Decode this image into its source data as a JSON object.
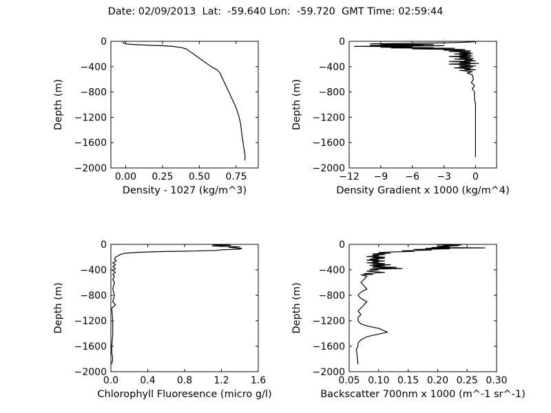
{
  "figure": {
    "title": "Date: 02/09/2013  Lat:  -59.640 Lon:  -59.720  GMT Time: 02:59:44"
  },
  "chart_data": [
    {
      "type": "line",
      "xlabel": "Density - 1027 (kg/m^3)",
      "ylabel": "Depth (m)",
      "xlim": [
        -0.1,
        0.9
      ],
      "ylim": [
        -2000,
        0
      ],
      "xticks": [
        0.0,
        0.25,
        0.5,
        0.75
      ],
      "xtick_labels": [
        "0.00",
        "0.25",
        "0.50",
        "0.75"
      ],
      "yticks": [
        0,
        -400,
        -800,
        -1200,
        -1600,
        -2000
      ],
      "ytick_labels": [
        "0",
        "−400",
        "−800",
        "−1200",
        "−1600",
        "−2000"
      ],
      "points": [
        [
          -0.02,
          -10
        ],
        [
          -0.01,
          -30
        ],
        [
          0.0,
          -40
        ],
        [
          0.02,
          -45
        ],
        [
          0.05,
          -50
        ],
        [
          0.1,
          -55
        ],
        [
          0.2,
          -65
        ],
        [
          0.25,
          -70
        ],
        [
          0.32,
          -80
        ],
        [
          0.35,
          -90
        ],
        [
          0.38,
          -100
        ],
        [
          0.41,
          -120
        ],
        [
          0.43,
          -150
        ],
        [
          0.46,
          -200
        ],
        [
          0.49,
          -250
        ],
        [
          0.52,
          -300
        ],
        [
          0.55,
          -350
        ],
        [
          0.58,
          -400
        ],
        [
          0.62,
          -450
        ],
        [
          0.64,
          -500
        ],
        [
          0.65,
          -550
        ],
        [
          0.67,
          -650
        ],
        [
          0.69,
          -750
        ],
        [
          0.72,
          -900
        ],
        [
          0.75,
          -1050
        ],
        [
          0.77,
          -1200
        ],
        [
          0.78,
          -1300
        ],
        [
          0.79,
          -1500
        ],
        [
          0.8,
          -1650
        ],
        [
          0.81,
          -1800
        ],
        [
          0.81,
          -1880
        ]
      ]
    },
    {
      "type": "line",
      "xlabel": "Density Gradient x 1000 (kg/m^4)",
      "ylabel": "Depth (m)",
      "xlim": [
        -12,
        2
      ],
      "ylim": [
        -2000,
        0
      ],
      "xticks": [
        -12,
        -9,
        -6,
        -3,
        0
      ],
      "xtick_labels": [
        "−12",
        "−9",
        "−6",
        "−3",
        "0"
      ],
      "yticks": [
        0,
        -400,
        -800,
        -1200,
        -1600,
        -2000
      ],
      "ytick_labels": [
        "0",
        "−400",
        "−800",
        "−1200",
        "−1600",
        "−2000"
      ],
      "points": [
        [
          0,
          -5
        ],
        [
          -1,
          -15
        ],
        [
          -3,
          -25
        ],
        [
          -6,
          -30
        ],
        [
          -10,
          -40
        ],
        [
          -4,
          -50
        ],
        [
          -9,
          -55
        ],
        [
          -5,
          -60
        ],
        [
          -10,
          -65
        ],
        [
          -3,
          -70
        ],
        [
          -11.5,
          -80
        ],
        [
          -6,
          -85
        ],
        [
          -9,
          -95
        ],
        [
          -4,
          -100
        ],
        [
          -8,
          -105
        ],
        [
          -2,
          -110
        ],
        [
          -6,
          -120
        ],
        [
          -1,
          -130
        ],
        [
          -3,
          -140
        ],
        [
          -0.5,
          -150
        ],
        [
          -2.5,
          -160
        ],
        [
          -0.5,
          -170
        ],
        [
          -1.5,
          -180
        ],
        [
          -0.3,
          -190
        ],
        [
          -2,
          -200
        ],
        [
          -0.5,
          -210
        ],
        [
          -1.5,
          -220
        ],
        [
          -0.3,
          -230
        ],
        [
          -2.5,
          -240
        ],
        [
          -0.5,
          -250
        ],
        [
          -1.5,
          -260
        ],
        [
          -0.2,
          -270
        ],
        [
          -2,
          -280
        ],
        [
          -0.3,
          -290
        ],
        [
          -1,
          -300
        ],
        [
          0,
          -310
        ],
        [
          -2.5,
          -320
        ],
        [
          -0.5,
          -330
        ],
        [
          -1.5,
          -340
        ],
        [
          0.3,
          -350
        ],
        [
          -2.5,
          -360
        ],
        [
          -0.5,
          -370
        ],
        [
          -1.5,
          -380
        ],
        [
          0,
          -390
        ],
        [
          -1.5,
          -400
        ],
        [
          -0.3,
          -410
        ],
        [
          -2,
          -420
        ],
        [
          -0.5,
          -430
        ],
        [
          -1,
          -440
        ],
        [
          0,
          -450
        ],
        [
          -1.5,
          -460
        ],
        [
          -0.3,
          -480
        ],
        [
          -0.8,
          -500
        ],
        [
          -0.3,
          -530
        ],
        [
          -0.2,
          -600
        ],
        [
          -0.4,
          -650
        ],
        [
          -0.1,
          -700
        ],
        [
          -0.3,
          -750
        ],
        [
          -0.1,
          -800
        ],
        [
          -0.1,
          -900
        ],
        [
          0,
          -1000
        ],
        [
          0,
          -1200
        ],
        [
          0,
          -1400
        ],
        [
          0,
          -1600
        ],
        [
          0,
          -1830
        ]
      ]
    },
    {
      "type": "line",
      "xlabel": "Chlorophyll Fluoresence (micro g/l)",
      "ylabel": "Depth (m)",
      "xlim": [
        0,
        1.6
      ],
      "ylim": [
        -2000,
        0
      ],
      "xticks": [
        0.0,
        0.4,
        0.8,
        1.2,
        1.6
      ],
      "xtick_labels": [
        "0.0",
        "0.4",
        "0.8",
        "1.2",
        "1.6"
      ],
      "yticks": [
        0,
        -400,
        -800,
        -1200,
        -1600,
        -2000
      ],
      "ytick_labels": [
        "0",
        "−400",
        "−800",
        "−1200",
        "−1600",
        "−2000"
      ],
      "points": [
        [
          1.1,
          -5
        ],
        [
          1.2,
          -10
        ],
        [
          1.3,
          -15
        ],
        [
          1.15,
          -20
        ],
        [
          1.1,
          -25
        ],
        [
          1.2,
          -30
        ],
        [
          1.4,
          -40
        ],
        [
          1.28,
          -45
        ],
        [
          1.35,
          -55
        ],
        [
          1.42,
          -65
        ],
        [
          1.4,
          -75
        ],
        [
          1.2,
          -85
        ],
        [
          1.15,
          -95
        ],
        [
          0.9,
          -105
        ],
        [
          0.5,
          -115
        ],
        [
          0.3,
          -125
        ],
        [
          0.15,
          -140
        ],
        [
          0.1,
          -160
        ],
        [
          0.08,
          -180
        ],
        [
          0.05,
          -200
        ],
        [
          0.04,
          -230
        ],
        [
          0.06,
          -260
        ],
        [
          0.02,
          -290
        ],
        [
          0.05,
          -320
        ],
        [
          0.02,
          -350
        ],
        [
          0.05,
          -380
        ],
        [
          0.02,
          -410
        ],
        [
          0.05,
          -440
        ],
        [
          0.02,
          -470
        ],
        [
          0.04,
          -500
        ],
        [
          0.02,
          -550
        ],
        [
          0.04,
          -600
        ],
        [
          0.02,
          -700
        ],
        [
          0.04,
          -800
        ],
        [
          0.02,
          -900
        ],
        [
          0.05,
          -950
        ],
        [
          0.01,
          -1000
        ],
        [
          0.02,
          -1200
        ],
        [
          0.02,
          -1400
        ],
        [
          0.01,
          -1600
        ],
        [
          0.01,
          -1700
        ],
        [
          0.02,
          -1800
        ],
        [
          0.01,
          -1880
        ]
      ]
    },
    {
      "type": "line",
      "xlabel": "Backscatter 700nm x 1000 (m^-1 sr^-1)",
      "ylabel": "Depth (m)",
      "xlim": [
        0.05,
        0.3
      ],
      "ylim": [
        -2000,
        0
      ],
      "xticks": [
        0.05,
        0.1,
        0.15,
        0.2,
        0.25,
        0.3
      ],
      "xtick_labels": [
        "0.05",
        "0.10",
        "0.15",
        "0.20",
        "0.25",
        "0.30"
      ],
      "yticks": [
        0,
        -400,
        -800,
        -1200,
        -1600,
        -2000
      ],
      "ytick_labels": [
        "0",
        "−400",
        "−800",
        "−1200",
        "−1600",
        "−2000"
      ],
      "points": [
        [
          0.2,
          -5
        ],
        [
          0.24,
          -10
        ],
        [
          0.21,
          -15
        ],
        [
          0.235,
          -20
        ],
        [
          0.2,
          -30
        ],
        [
          0.22,
          -40
        ],
        [
          0.19,
          -50
        ],
        [
          0.28,
          -55
        ],
        [
          0.18,
          -60
        ],
        [
          0.22,
          -70
        ],
        [
          0.16,
          -80
        ],
        [
          0.19,
          -90
        ],
        [
          0.14,
          -100
        ],
        [
          0.16,
          -110
        ],
        [
          0.12,
          -120
        ],
        [
          0.1,
          -130
        ],
        [
          0.12,
          -140
        ],
        [
          0.09,
          -150
        ],
        [
          0.11,
          -160
        ],
        [
          0.09,
          -170
        ],
        [
          0.1,
          -180
        ],
        [
          0.08,
          -190
        ],
        [
          0.11,
          -200
        ],
        [
          0.09,
          -210
        ],
        [
          0.11,
          -220
        ],
        [
          0.085,
          -230
        ],
        [
          0.1,
          -240
        ],
        [
          0.08,
          -250
        ],
        [
          0.11,
          -260
        ],
        [
          0.09,
          -270
        ],
        [
          0.1,
          -280
        ],
        [
          0.08,
          -290
        ],
        [
          0.11,
          -300
        ],
        [
          0.09,
          -310
        ],
        [
          0.12,
          -320
        ],
        [
          0.085,
          -330
        ],
        [
          0.11,
          -340
        ],
        [
          0.09,
          -350
        ],
        [
          0.13,
          -360
        ],
        [
          0.09,
          -370
        ],
        [
          0.14,
          -380
        ],
        [
          0.085,
          -390
        ],
        [
          0.1,
          -400
        ],
        [
          0.08,
          -420
        ],
        [
          0.11,
          -440
        ],
        [
          0.075,
          -460
        ],
        [
          0.09,
          -470
        ],
        [
          0.07,
          -480
        ],
        [
          0.08,
          -500
        ],
        [
          0.075,
          -550
        ],
        [
          0.07,
          -600
        ],
        [
          0.075,
          -650
        ],
        [
          0.08,
          -700
        ],
        [
          0.07,
          -750
        ],
        [
          0.065,
          -800
        ],
        [
          0.07,
          -850
        ],
        [
          0.08,
          -900
        ],
        [
          0.075,
          -950
        ],
        [
          0.07,
          -1000
        ],
        [
          0.065,
          -1050
        ],
        [
          0.07,
          -1100
        ],
        [
          0.065,
          -1150
        ],
        [
          0.065,
          -1200
        ],
        [
          0.07,
          -1250
        ],
        [
          0.08,
          -1280
        ],
        [
          0.09,
          -1300
        ],
        [
          0.1,
          -1320
        ],
        [
          0.115,
          -1380
        ],
        [
          0.1,
          -1410
        ],
        [
          0.08,
          -1450
        ],
        [
          0.07,
          -1500
        ],
        [
          0.065,
          -1550
        ],
        [
          0.065,
          -1600
        ],
        [
          0.062,
          -1650
        ],
        [
          0.063,
          -1700
        ],
        [
          0.064,
          -1800
        ],
        [
          0.065,
          -1880
        ]
      ]
    }
  ]
}
